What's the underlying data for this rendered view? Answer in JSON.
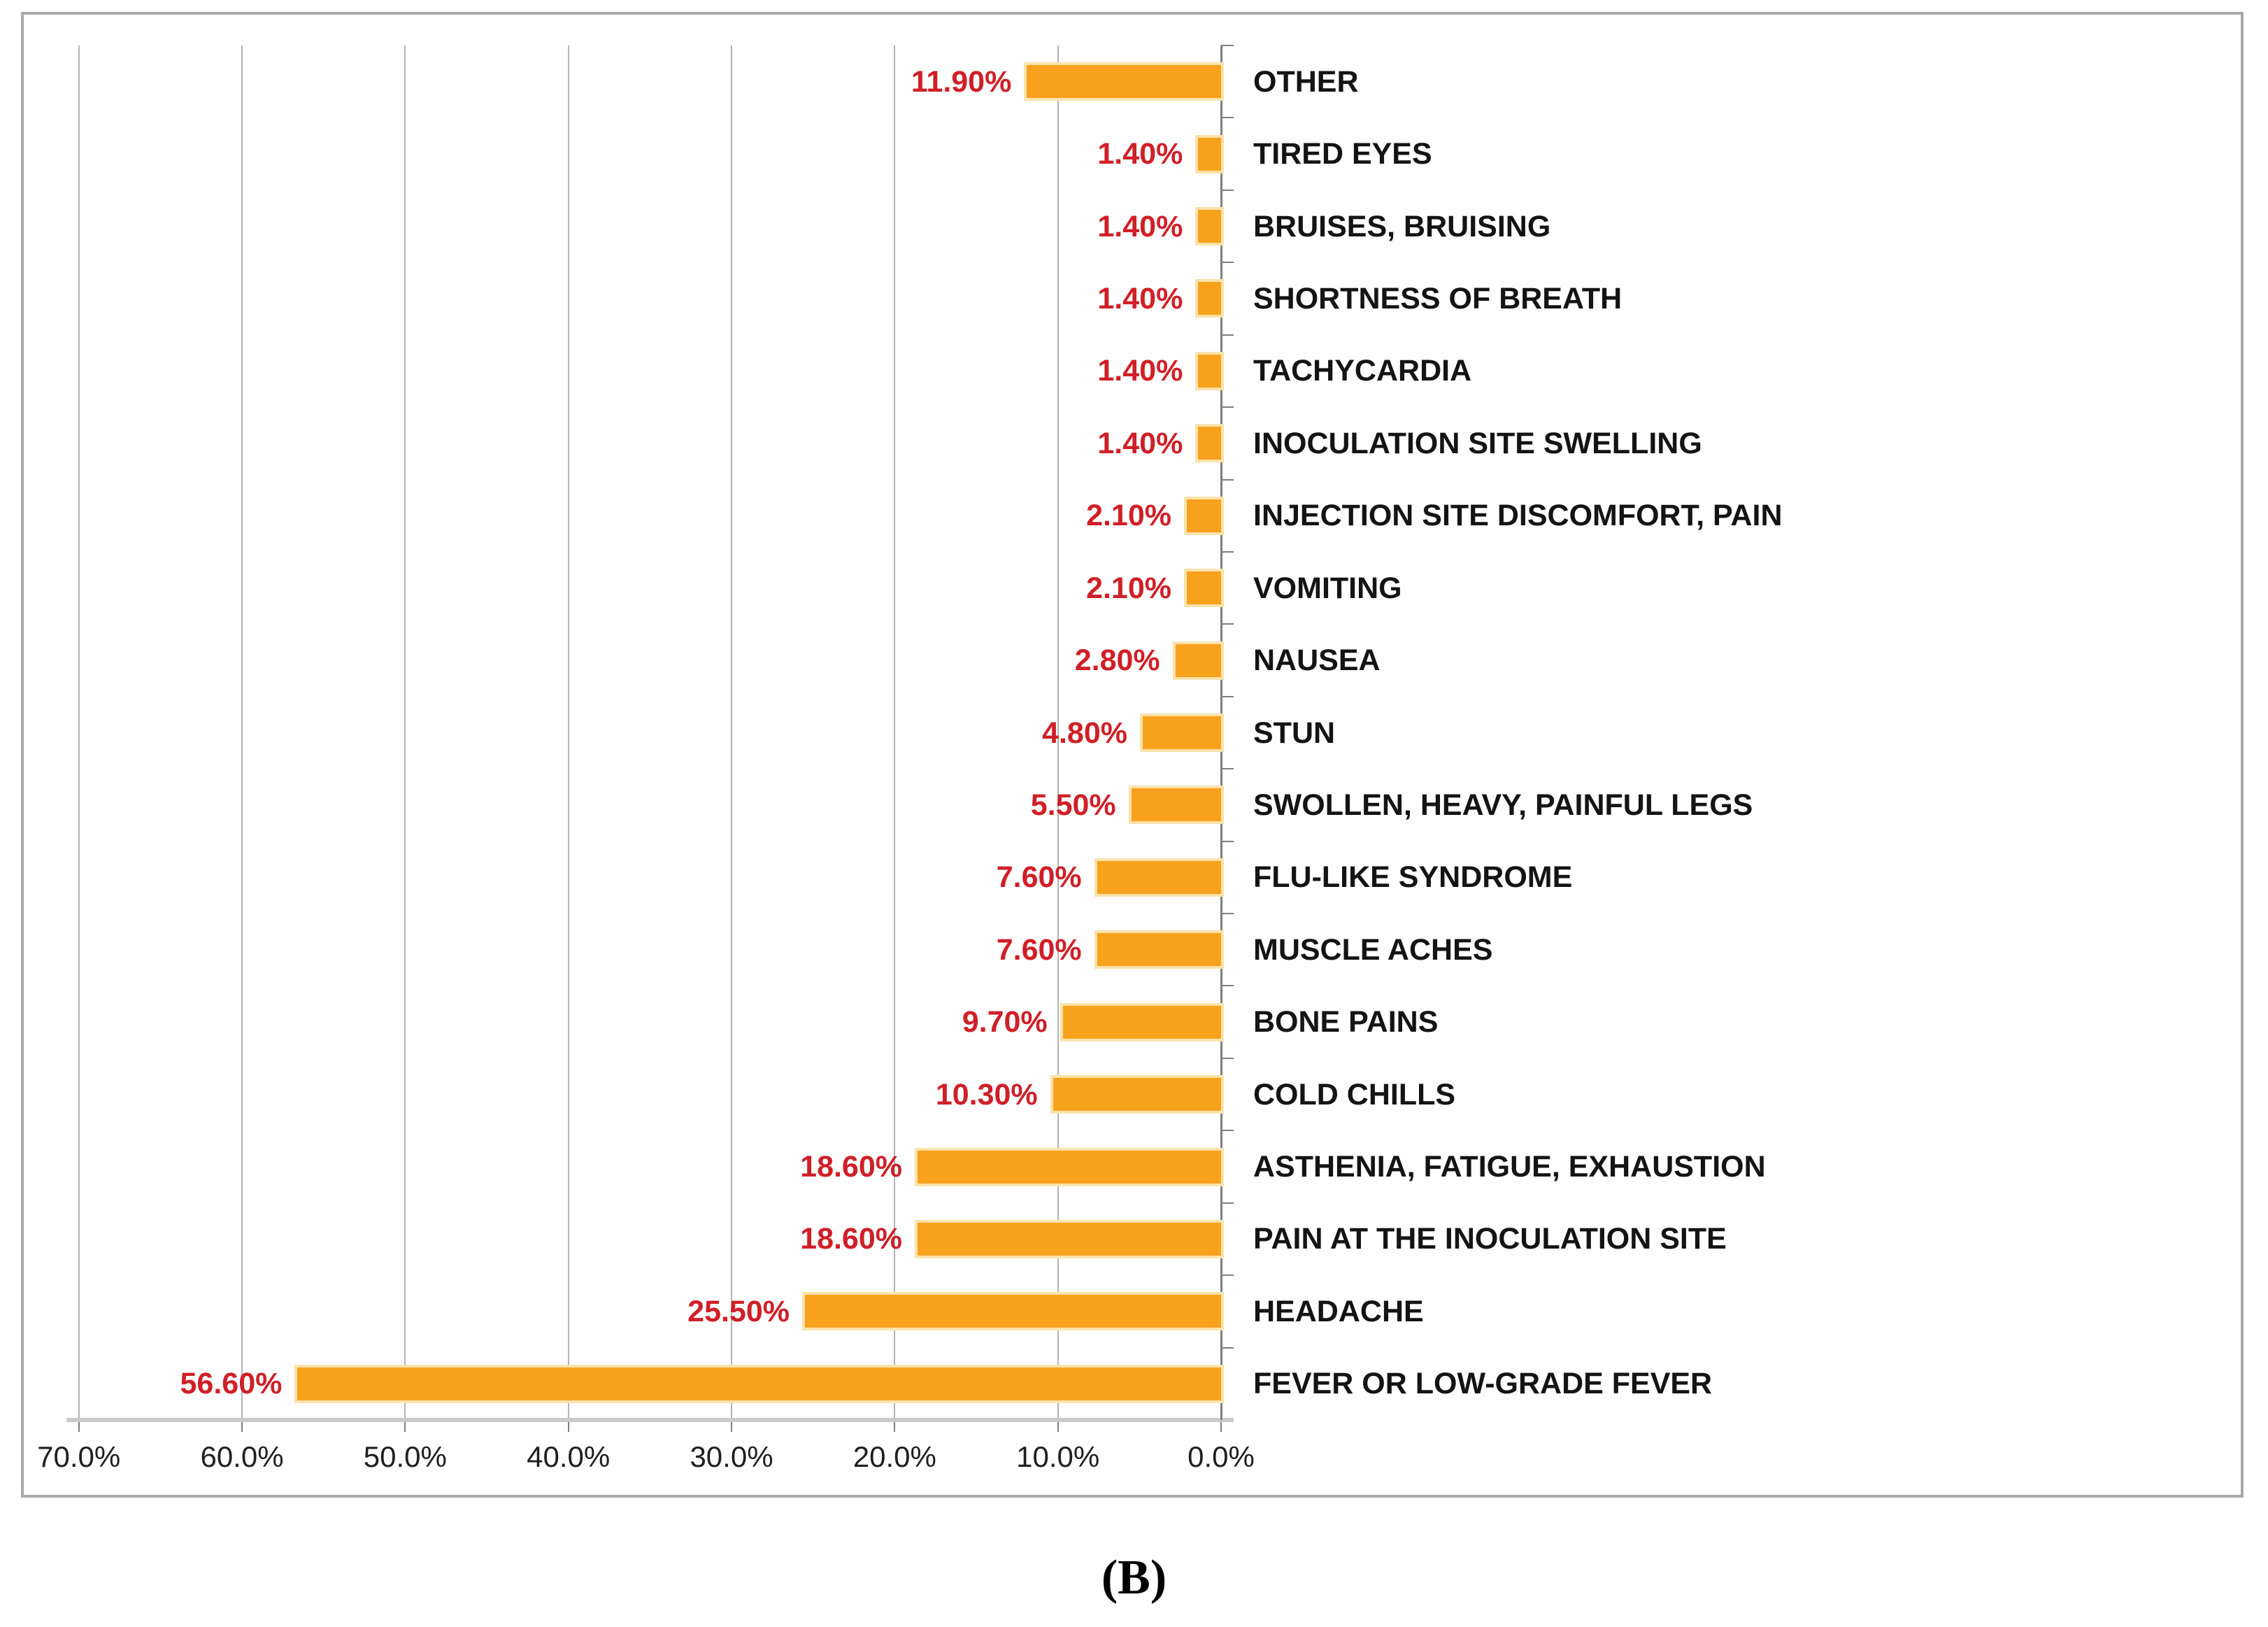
{
  "figure": {
    "caption": "(B)"
  },
  "chart_data": {
    "type": "bar",
    "orientation": "horizontal",
    "value_axis_side": "bottom",
    "x_axis_reversed": true,
    "bars_anchored_at": "right",
    "title": "",
    "xlabel": "",
    "ylabel": "",
    "grid": true,
    "legend": "none",
    "xlim": [
      0,
      70
    ],
    "x_ticks": [
      "70.0%",
      "60.0%",
      "50.0%",
      "40.0%",
      "30.0%",
      "20.0%",
      "10.0%",
      "0.0%"
    ],
    "x_tick_values": [
      70,
      60,
      50,
      40,
      30,
      20,
      10,
      0
    ],
    "categories": [
      "OTHER",
      "TIRED EYES",
      "BRUISES, BRUISING",
      "SHORTNESS OF BREATH",
      "TACHYCARDIA",
      "INOCULATION SITE SWELLING",
      "INJECTION SITE DISCOMFORT, PAIN",
      "VOMITING",
      "NAUSEA",
      "STUN",
      "SWOLLEN, HEAVY, PAINFUL LEGS",
      "FLU-LIKE SYNDROME",
      "MUSCLE ACHES",
      "BONE PAINS",
      "COLD CHILLS",
      "ASTHENIA, FATIGUE, EXHAUSTION",
      "PAIN AT THE INOCULATION SITE",
      "HEADACHE",
      "FEVER OR LOW-GRADE FEVER"
    ],
    "values": [
      11.9,
      1.4,
      1.4,
      1.4,
      1.4,
      1.4,
      2.1,
      2.1,
      2.8,
      4.8,
      5.5,
      7.6,
      7.6,
      9.7,
      10.3,
      18.6,
      18.6,
      25.5,
      56.6
    ],
    "value_labels": [
      "11.90%",
      "1.40%",
      "1.40%",
      "1.40%",
      "1.40%",
      "1.40%",
      "2.10%",
      "2.10%",
      "2.80%",
      "4.80%",
      "5.50%",
      "7.60%",
      "7.60%",
      "9.70%",
      "10.30%",
      "18.60%",
      "18.60%",
      "25.50%",
      "56.60%"
    ],
    "colors": {
      "bar_fill": "#F8A11D",
      "bar_halo": "#FCE2AC",
      "value_label": "#D01F27",
      "category_label": "#141414",
      "grid_line": "#B3B3B3",
      "axis_line": "#7F7F7F",
      "baseline": "#C9C9C9",
      "frame_border": "#A9A9A9"
    }
  }
}
